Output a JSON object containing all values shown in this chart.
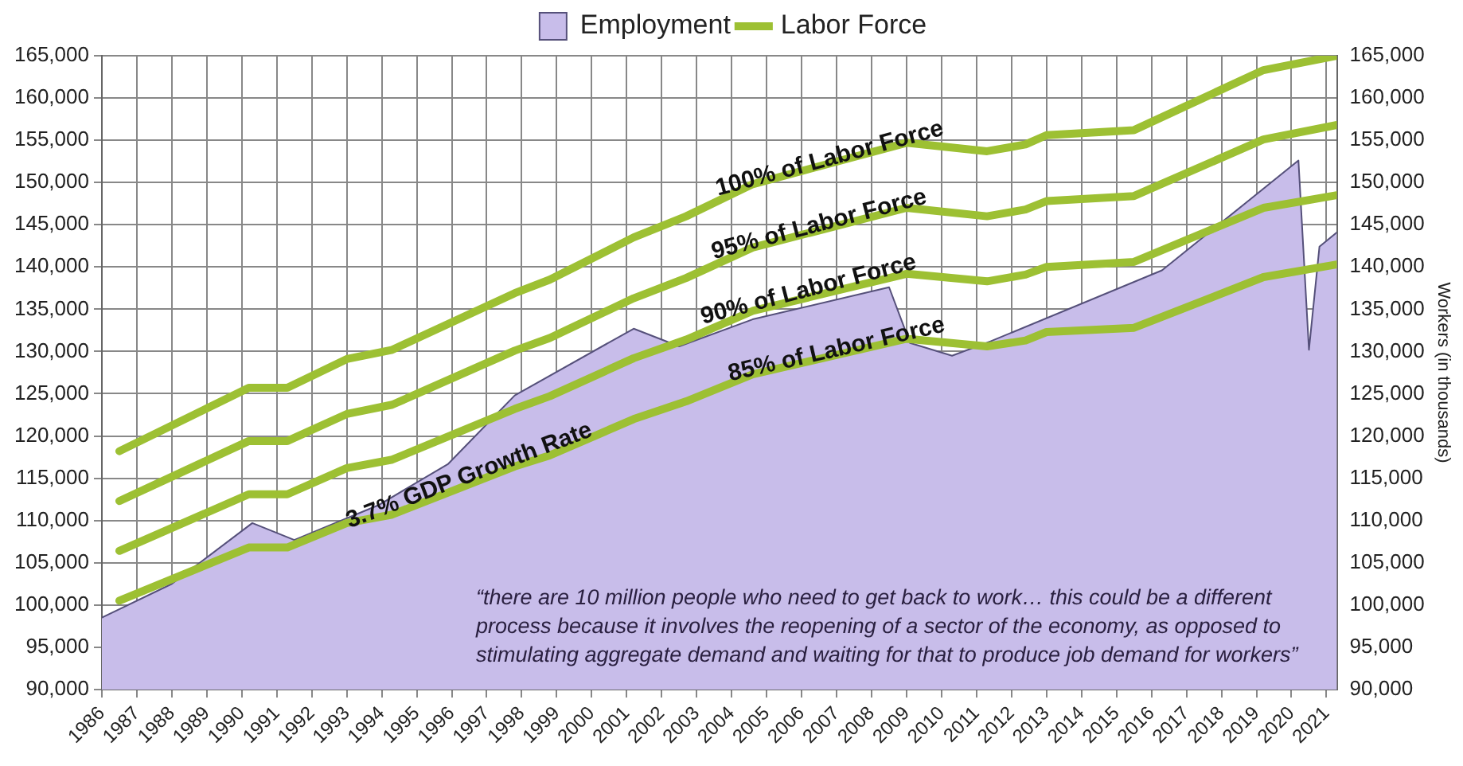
{
  "chart_data": {
    "type": "area",
    "x": [
      1986.5,
      1990.2,
      1991.3,
      1993,
      1994.3,
      1997.8,
      1998.8,
      2001.2,
      2002.7,
      2004.6,
      2009,
      2011.3,
      2012.4,
      2013,
      2015.5,
      2019.2,
      2021.3
    ],
    "series": [
      {
        "name": "Employment",
        "type": "area",
        "color": "#c8bdea",
        "x": [
          1986,
          1988,
          1990.3,
          1991.5,
          1993.9,
          1995.9,
          1997.8,
          2001.2,
          2002.5,
          2004.6,
          2008.5,
          2009.1,
          2010.3,
          2011.4,
          2016.3,
          2020.2,
          2020.5,
          2020.8,
          2021.3
        ],
        "values": [
          98500,
          102500,
          109700,
          107700,
          111800,
          116700,
          124800,
          132700,
          130600,
          133800,
          137600,
          131000,
          129500,
          131200,
          139600,
          152600,
          130200,
          142400,
          144100
        ]
      },
      {
        "name": "Labor Force",
        "type": "line",
        "color": "#9dc033",
        "values": [
          118200,
          125700,
          125700,
          129100,
          130200,
          136900,
          138500,
          143500,
          146000,
          149800,
          154700,
          153700,
          154500,
          155600,
          156200,
          163300,
          165000
        ]
      },
      {
        "type": "line",
        "color": "#9dc033",
        "values": [
          112300,
          119400,
          119400,
          122600,
          123700,
          130100,
          131600,
          136300,
          138700,
          142300,
          147000,
          146000,
          146800,
          147800,
          148400,
          155100,
          156800
        ]
      },
      {
        "type": "line",
        "color": "#9dc033",
        "values": [
          106400,
          113100,
          113100,
          116200,
          117200,
          123200,
          124700,
          129200,
          131400,
          134800,
          139200,
          138300,
          139100,
          140000,
          140600,
          147000,
          148500
        ]
      },
      {
        "type": "line",
        "color": "#9dc033",
        "values": [
          100500,
          106800,
          106800,
          109700,
          110700,
          116400,
          117700,
          122000,
          124100,
          127300,
          131500,
          130600,
          131300,
          132300,
          132800,
          138800,
          140300
        ]
      }
    ],
    "xlim": [
      1986,
      2021.3
    ],
    "xticks": [
      1986,
      1987,
      1988,
      1989,
      1990,
      1991,
      1992,
      1993,
      1994,
      1995,
      1996,
      1997,
      1998,
      1999,
      2000,
      2001,
      2002,
      2003,
      2004,
      2005,
      2006,
      2007,
      2008,
      2009,
      2010,
      2011,
      2012,
      2013,
      2014,
      2015,
      2016,
      2017,
      2018,
      2019,
      2020,
      2021
    ],
    "ylim": [
      90000,
      165000
    ],
    "yticks": [
      {
        "value": 90000,
        "label": "90,000"
      },
      {
        "value": 95000,
        "label": "95,000"
      },
      {
        "value": 100000,
        "label": "100,000"
      },
      {
        "value": 105000,
        "label": "105,000"
      },
      {
        "value": 110000,
        "label": "110,000"
      },
      {
        "value": 115000,
        "label": "115,000"
      },
      {
        "value": 120000,
        "label": "120,000"
      },
      {
        "value": 125000,
        "label": "125,000"
      },
      {
        "value": 130000,
        "label": "130,000"
      },
      {
        "value": 135000,
        "label": "135,000"
      },
      {
        "value": 140000,
        "label": "140,000"
      },
      {
        "value": 145000,
        "label": "145,000"
      },
      {
        "value": 150000,
        "label": "150,000"
      },
      {
        "value": 155000,
        "label": "155,000"
      },
      {
        "value": 160000,
        "label": "160,000"
      },
      {
        "value": 165000,
        "label": "165,000"
      }
    ],
    "y2lim": [
      90000,
      165000
    ],
    "y2ticks": [
      {
        "value": 90000,
        "label": "90,000"
      },
      {
        "value": 95000,
        "label": "95,000"
      },
      {
        "value": 100000,
        "label": "100,000"
      },
      {
        "value": 105000,
        "label": "105,000"
      },
      {
        "value": 110000,
        "label": "110,000"
      },
      {
        "value": 115000,
        "label": "115,000"
      },
      {
        "value": 120000,
        "label": "120,000"
      },
      {
        "value": 125000,
        "label": "125,000"
      },
      {
        "value": 130000,
        "label": "130,000"
      },
      {
        "value": 135000,
        "label": "135,000"
      },
      {
        "value": 140000,
        "label": "140,000"
      },
      {
        "value": 145000,
        "label": "145,000"
      },
      {
        "value": 150000,
        "label": "150,000"
      },
      {
        "value": 155000,
        "label": "155,000"
      },
      {
        "value": 160000,
        "label": "160,000"
      },
      {
        "value": 165000,
        "label": "165,000"
      }
    ],
    "y2label": "Workers (in thousands)",
    "grid": true,
    "legend": "top",
    "annotations": [
      {
        "text": "100% of Labor Force",
        "x": 2006.8,
        "y": 152800
      },
      {
        "text": "95% of Labor Force",
        "x": 2006.5,
        "y": 145000
      },
      {
        "text": "90% of Labor Force",
        "x": 2006.2,
        "y": 137300
      },
      {
        "text": "85% of Labor Force",
        "x": 2007,
        "y": 130200
      },
      {
        "text": "3.7% GDP Growth Rate",
        "x": 1996.5,
        "y": 115300
      },
      "“there are 10 million people who need to get back to work… this could be a different process because it involves the reopening of a sector of the economy, as opposed to stimulating aggregate demand and waiting for that to produce job demand for workers”"
    ]
  }
}
